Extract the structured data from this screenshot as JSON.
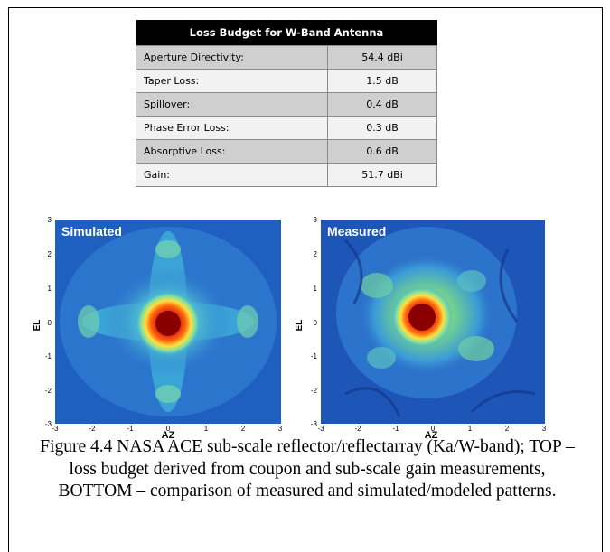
{
  "table": {
    "title": "Loss Budget  for W-Band Antenna",
    "rows": [
      {
        "label": "Aperture Directivity:",
        "value": "54.4 dBi"
      },
      {
        "label": "Taper Loss:",
        "value": "1.5 dB"
      },
      {
        "label": "Spillover:",
        "value": "0.4 dB"
      },
      {
        "label": "Phase Error Loss:",
        "value": "0.3 dB"
      },
      {
        "label": "Absorptive Loss:",
        "value": "0.6 dB"
      },
      {
        "label": "Gain:",
        "value": "51.7 dBi"
      }
    ]
  },
  "plots": {
    "left": {
      "title": "Simulated",
      "xlabel": "AZ",
      "ylabel": "EL"
    },
    "right": {
      "title": "Measured",
      "xlabel": "AZ",
      "ylabel": "EL"
    },
    "xticks": [
      "-3",
      "-2",
      "-1",
      "0",
      "1",
      "2",
      "3"
    ],
    "yticks": [
      "3",
      "2",
      "1",
      "0",
      "-1",
      "-2",
      "-3"
    ]
  },
  "caption": "Figure 4.4 NASA ACE sub-scale reflector/reflectarray (Ka/W-band); TOP – loss budget derived from coupon and sub-scale gain measurements, BOTTOM – comparison of measured and simulated/modeled patterns.",
  "colors": {
    "field": "#1f5fc0",
    "peak": "#c01010",
    "ring": "#f0e02a"
  }
}
